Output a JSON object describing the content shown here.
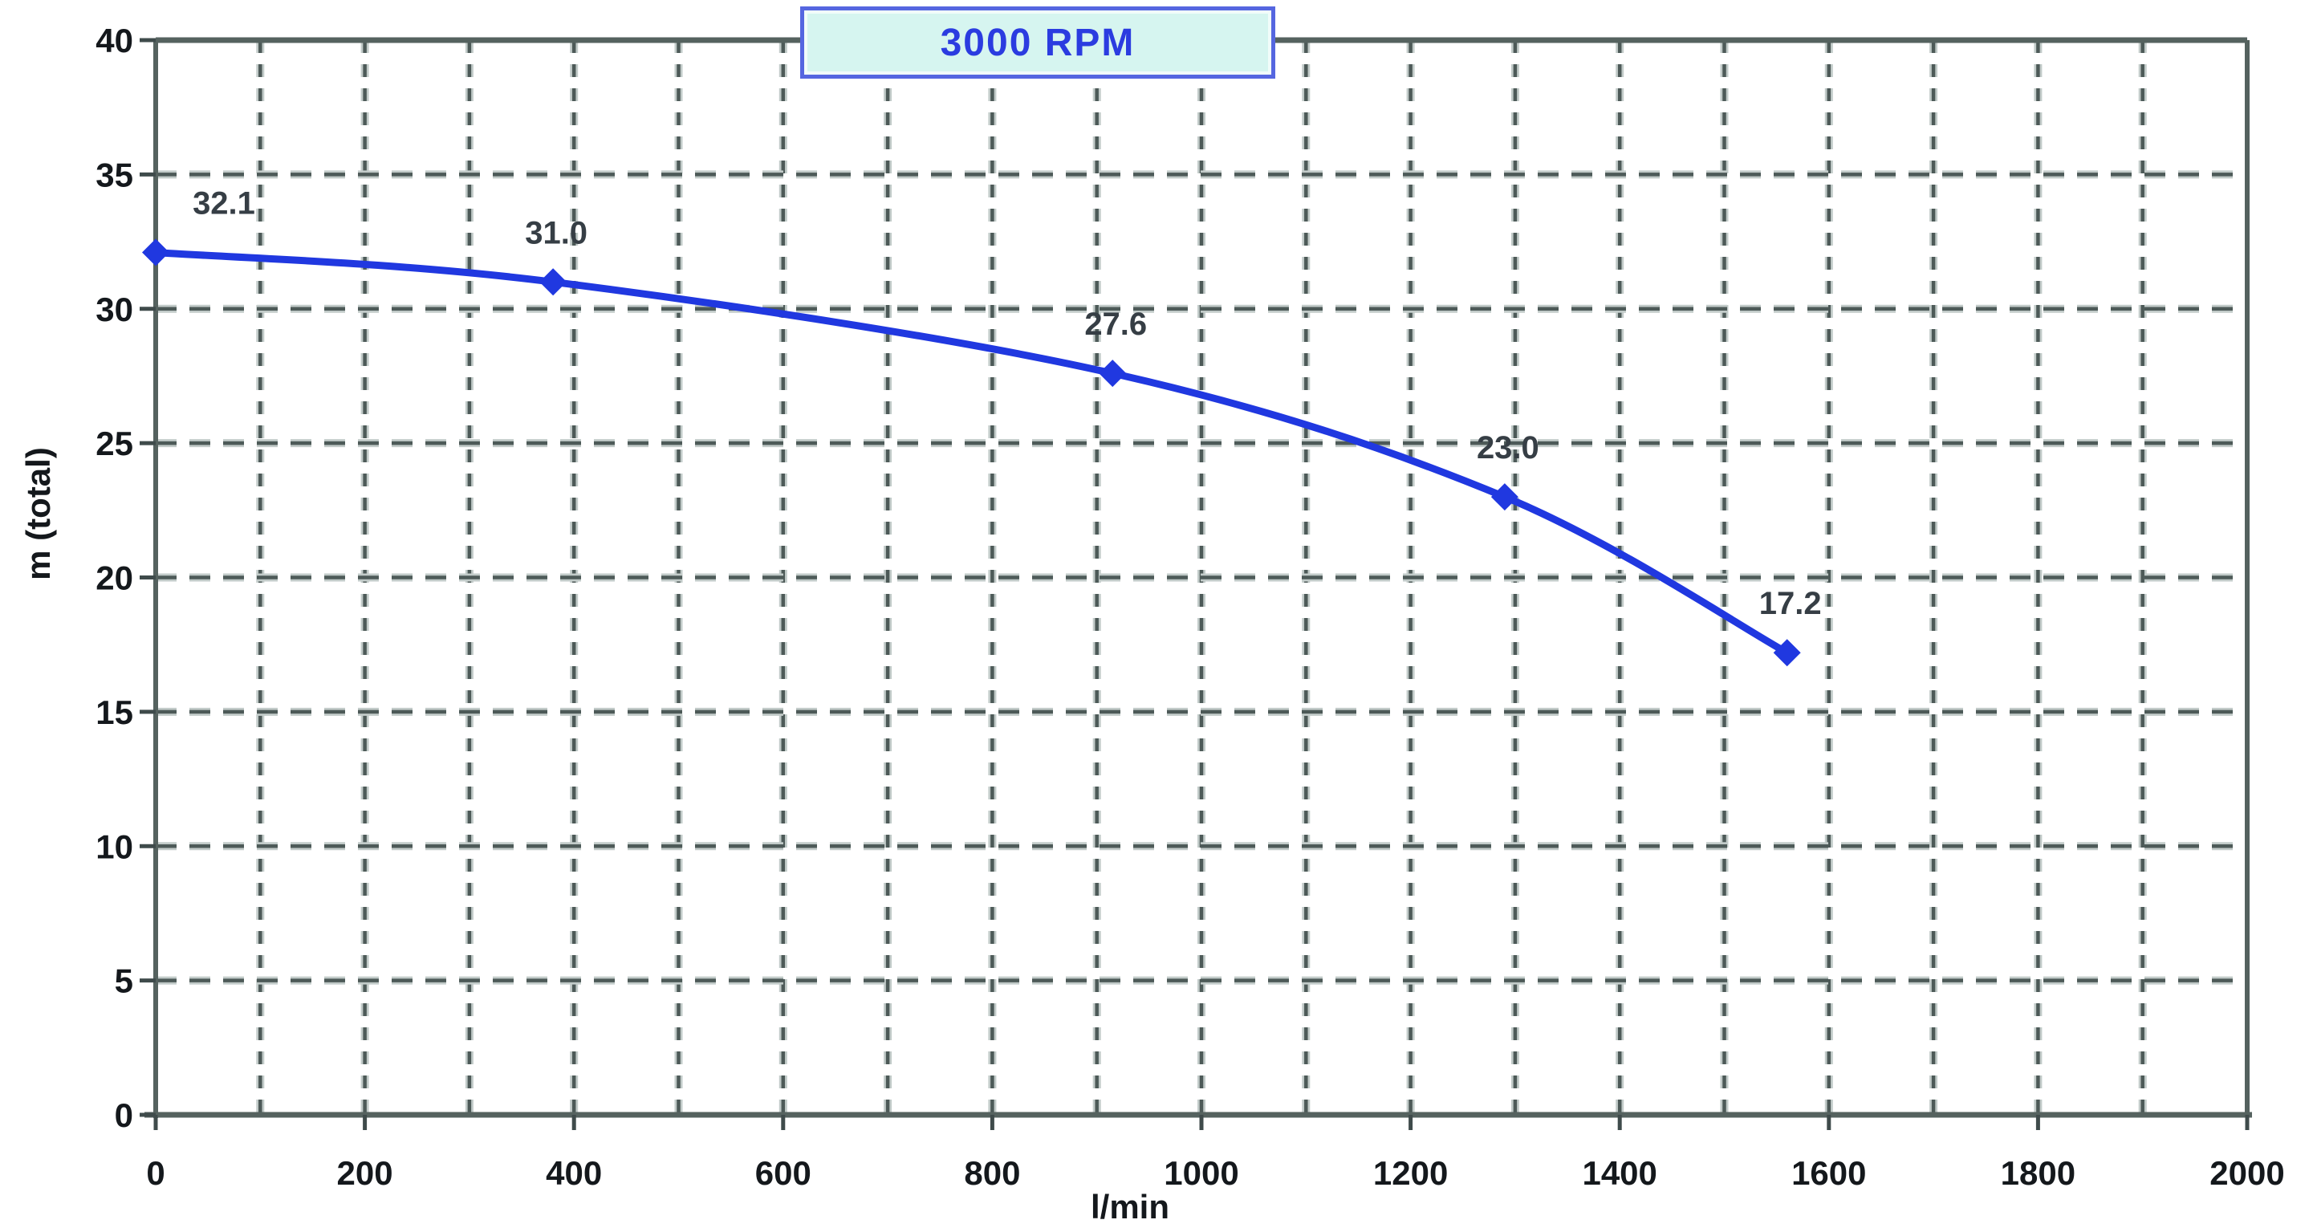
{
  "chart_data": {
    "type": "line",
    "title": "3000 RPM",
    "xlabel": "l/min",
    "ylabel": "m (total)",
    "xlim": [
      0,
      2000
    ],
    "ylim": [
      0,
      40
    ],
    "x_ticks": [
      0,
      200,
      400,
      600,
      800,
      1000,
      1200,
      1400,
      1600,
      1800,
      2000
    ],
    "y_ticks": [
      0,
      5,
      10,
      15,
      20,
      25,
      30,
      35,
      40
    ],
    "x_grid_step": 100,
    "y_grid_step": 5,
    "grid_style": "dashed",
    "legend": "none",
    "series": [
      {
        "name": "3000 RPM",
        "marker": "diamond",
        "points": [
          {
            "x": 0,
            "y": 32.1,
            "label": "32.1"
          },
          {
            "x": 380,
            "y": 31.0,
            "label": "31.0"
          },
          {
            "x": 915,
            "y": 27.6,
            "label": "27.6"
          },
          {
            "x": 1290,
            "y": 23.0,
            "label": "23.0"
          },
          {
            "x": 1560,
            "y": 17.2,
            "label": "17.2"
          }
        ]
      }
    ]
  },
  "colors": {
    "background": "#ffffff",
    "curve": "#2038e0",
    "grid_dark": "#4d5a58",
    "grid_light": "#c2cbc9",
    "axis": "#55625f",
    "tick": "#3f4b4b",
    "tick_label": "#14181c",
    "point_label": "#363e45",
    "title_text": "#2b3ce0",
    "title_fill": "#d6f5f0",
    "title_border": "#5566e0"
  }
}
